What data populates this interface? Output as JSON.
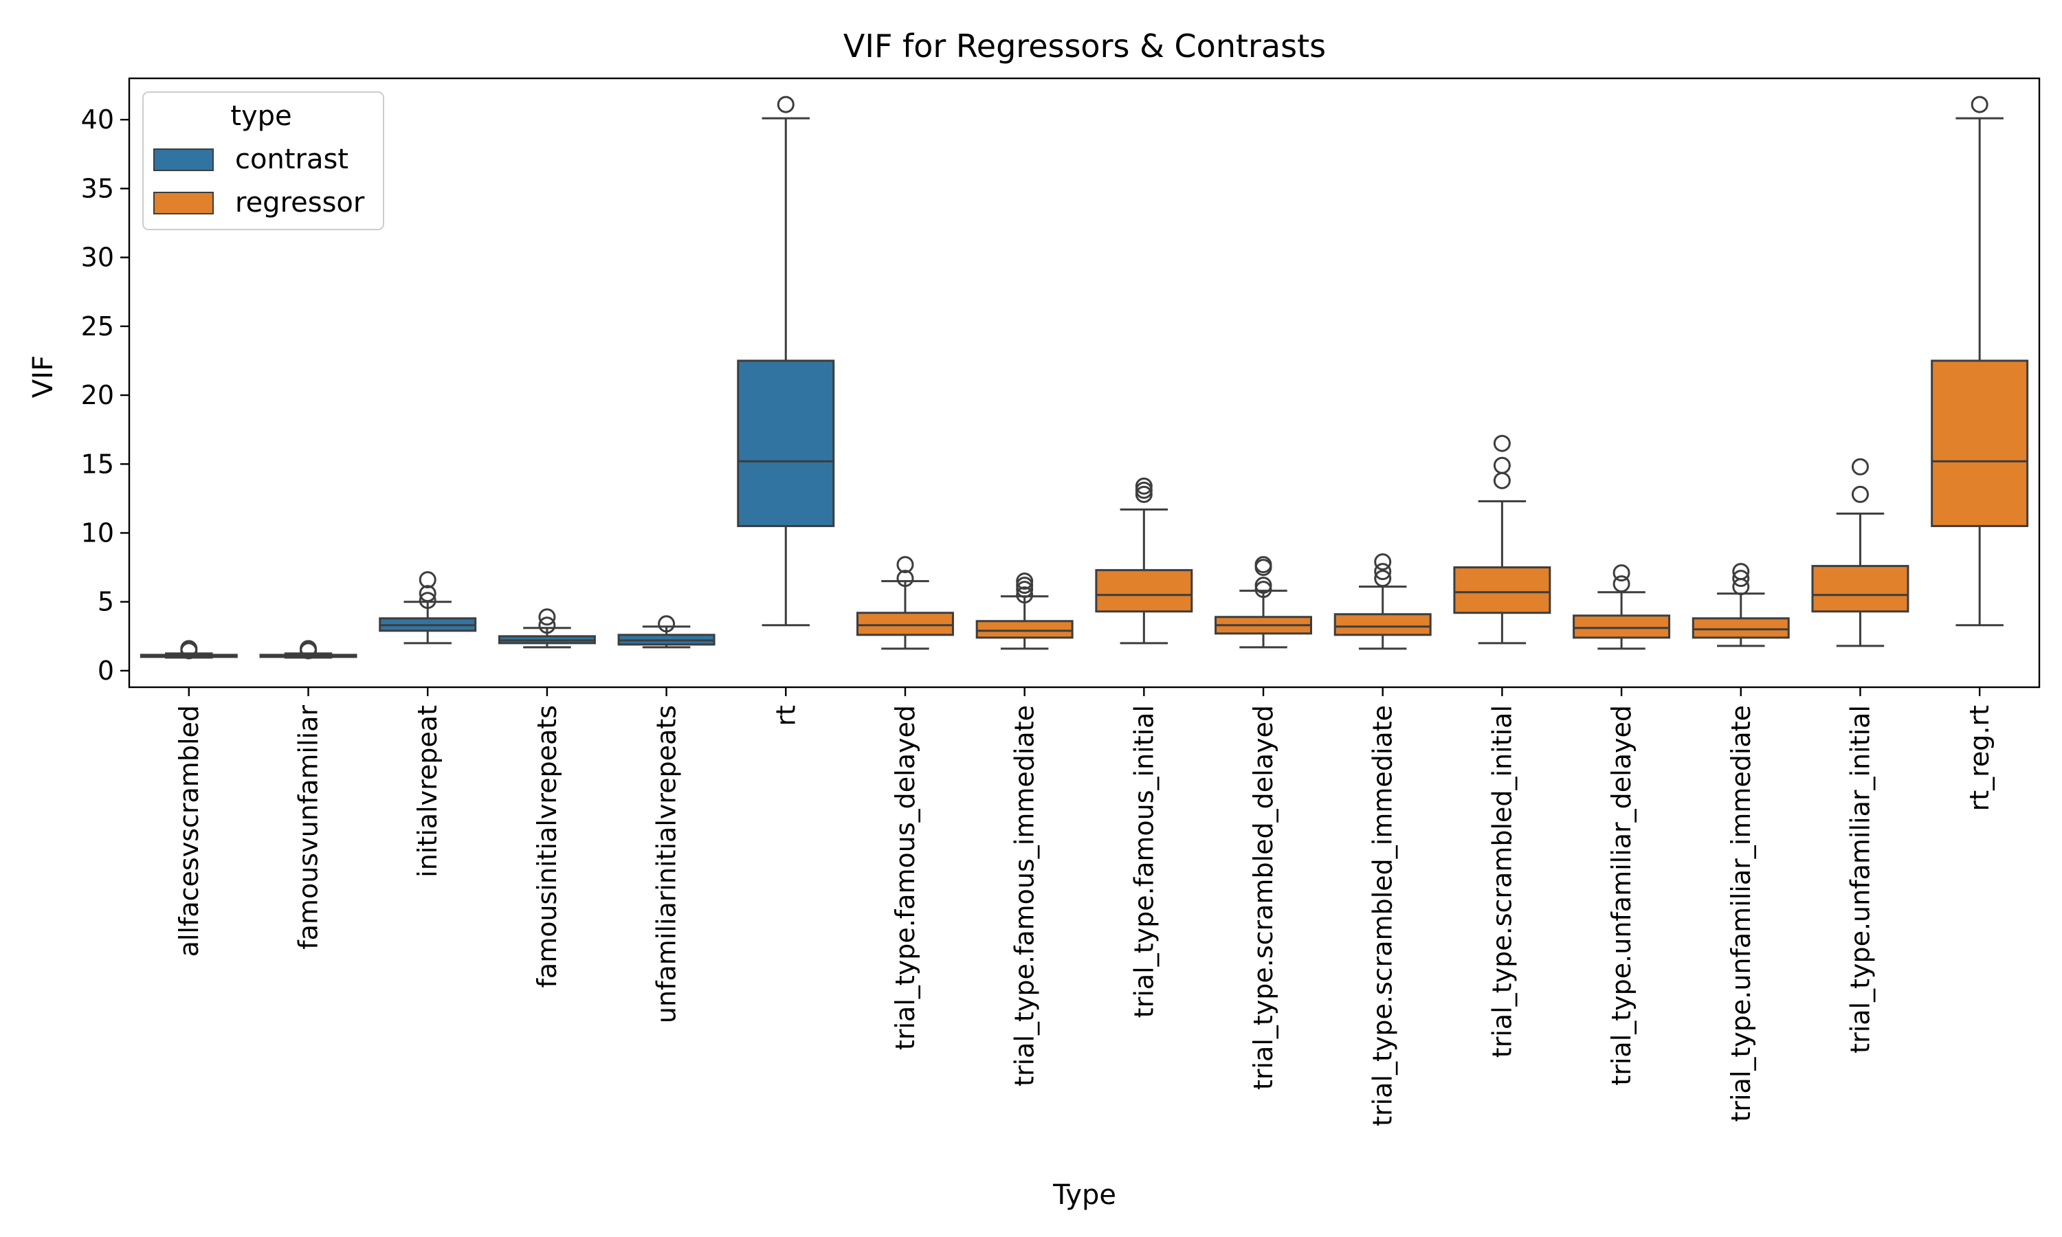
{
  "chart_data": {
    "type": "box",
    "title": "VIF for Regressors & Contrasts",
    "xlabel": "Type",
    "ylabel": "VIF",
    "ylim": [
      -1.2,
      43
    ],
    "yticks": [
      0,
      5,
      10,
      15,
      20,
      25,
      30,
      35,
      40
    ],
    "grid": false,
    "legend": {
      "title": "type",
      "placement": "top-left",
      "entries": [
        {
          "name": "contrast",
          "color": "#3274a1"
        },
        {
          "name": "regressor",
          "color": "#e1812c"
        }
      ]
    },
    "boxes": [
      {
        "category": "allfacesvscrambled",
        "series": "contrast",
        "whisker_low": 0.95,
        "q1": 1.0,
        "median": 1.05,
        "q3": 1.15,
        "whisker_high": 1.25,
        "outliers": [
          1.45,
          1.6
        ]
      },
      {
        "category": "famousvunfamiliar",
        "series": "contrast",
        "whisker_low": 0.95,
        "q1": 1.0,
        "median": 1.05,
        "q3": 1.15,
        "whisker_high": 1.25,
        "outliers": [
          1.45,
          1.6
        ]
      },
      {
        "category": "initialvrepeat",
        "series": "contrast",
        "whisker_low": 2.0,
        "q1": 2.9,
        "median": 3.3,
        "q3": 3.8,
        "whisker_high": 5.0,
        "outliers": [
          5.1,
          5.6,
          6.6
        ]
      },
      {
        "category": "famousinitialvrepeats",
        "series": "contrast",
        "whisker_low": 1.7,
        "q1": 2.0,
        "median": 2.2,
        "q3": 2.5,
        "whisker_high": 3.1,
        "outliers": [
          3.3,
          3.9
        ]
      },
      {
        "category": "unfamiliarinitialvrepeats",
        "series": "contrast",
        "whisker_low": 1.7,
        "q1": 1.9,
        "median": 2.2,
        "q3": 2.6,
        "whisker_high": 3.2,
        "outliers": [
          3.4
        ]
      },
      {
        "category": "rt",
        "series": "contrast",
        "whisker_low": 3.3,
        "q1": 10.5,
        "median": 15.2,
        "q3": 22.5,
        "whisker_high": 40.1,
        "outliers": [
          41.1
        ]
      },
      {
        "category": "trial_type.famous_delayed",
        "series": "regressor",
        "whisker_low": 1.6,
        "q1": 2.6,
        "median": 3.3,
        "q3": 4.2,
        "whisker_high": 6.5,
        "outliers": [
          6.7,
          7.7
        ]
      },
      {
        "category": "trial_type.famous_immediate",
        "series": "regressor",
        "whisker_low": 1.6,
        "q1": 2.4,
        "median": 2.9,
        "q3": 3.6,
        "whisker_high": 5.4,
        "outliers": [
          5.5,
          5.9,
          6.2,
          6.5
        ]
      },
      {
        "category": "trial_type.famous_initial",
        "series": "regressor",
        "whisker_low": 2.0,
        "q1": 4.3,
        "median": 5.5,
        "q3": 7.3,
        "whisker_high": 11.7,
        "outliers": [
          12.8,
          13.1,
          13.4
        ]
      },
      {
        "category": "trial_type.scrambled_delayed",
        "series": "regressor",
        "whisker_low": 1.7,
        "q1": 2.7,
        "median": 3.3,
        "q3": 3.9,
        "whisker_high": 5.8,
        "outliers": [
          5.9,
          6.2,
          7.5,
          7.7
        ]
      },
      {
        "category": "trial_type.scrambled_immediate",
        "series": "regressor",
        "whisker_low": 1.6,
        "q1": 2.6,
        "median": 3.2,
        "q3": 4.1,
        "whisker_high": 6.1,
        "outliers": [
          6.7,
          7.2,
          7.9
        ]
      },
      {
        "category": "trial_type.scrambled_initial",
        "series": "regressor",
        "whisker_low": 2.0,
        "q1": 4.2,
        "median": 5.7,
        "q3": 7.5,
        "whisker_high": 12.3,
        "outliers": [
          13.8,
          14.9,
          16.5
        ]
      },
      {
        "category": "trial_type.unfamiliar_delayed",
        "series": "regressor",
        "whisker_low": 1.6,
        "q1": 2.4,
        "median": 3.1,
        "q3": 4.0,
        "whisker_high": 5.7,
        "outliers": [
          6.3,
          7.1
        ]
      },
      {
        "category": "trial_type.unfamiliar_immediate",
        "series": "regressor",
        "whisker_low": 1.8,
        "q1": 2.4,
        "median": 3.0,
        "q3": 3.8,
        "whisker_high": 5.6,
        "outliers": [
          6.1,
          6.7,
          7.2
        ]
      },
      {
        "category": "trial_type.unfamiliar_initial",
        "series": "regressor",
        "whisker_low": 1.8,
        "q1": 4.3,
        "median": 5.5,
        "q3": 7.6,
        "whisker_high": 11.4,
        "outliers": [
          12.8,
          14.8
        ]
      },
      {
        "category": "rt_reg.rt",
        "series": "regressor",
        "whisker_low": 3.3,
        "q1": 10.5,
        "median": 15.2,
        "q3": 22.5,
        "whisker_high": 40.1,
        "outliers": [
          41.1
        ]
      }
    ]
  }
}
